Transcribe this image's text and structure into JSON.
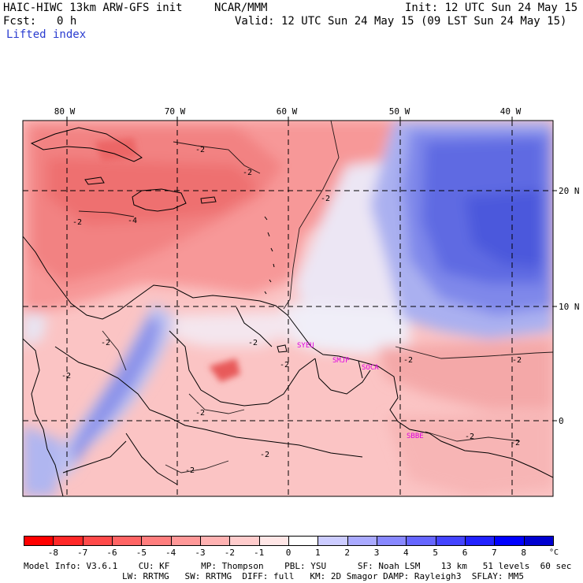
{
  "header": {
    "model_title": "HAIC-HIWC 13km ARW-GFS init",
    "org": "NCAR/MMM",
    "init": "Init: 12 UTC Sun 24 May 15",
    "fcst_label": "Fcst:",
    "fcst_value": "0 h",
    "valid": "Valid: 12 UTC Sun 24 May 15 (09 LST Sun 24 May 15)",
    "field_name": "Lifted index"
  },
  "map": {
    "lon_labels": [
      "80 W",
      "70 W",
      "60 W",
      "50 W",
      "40 W"
    ],
    "lat_labels": [
      "20 N",
      "10 N",
      "0"
    ],
    "contour_labels": [
      "-2",
      "-2",
      "-2",
      "-2",
      "-2",
      "-2",
      "-2",
      "-2",
      "-2",
      "-2",
      "-2",
      "-2",
      "-2",
      "-2",
      "-2",
      "-4"
    ],
    "stations": [
      "SYEU",
      "SMJP",
      "SOCA",
      "SBBE"
    ],
    "colors": {
      "marker": "#e000e0",
      "warm": "#f08080",
      "cool": "#4050e0"
    }
  },
  "colorbar": {
    "ticks": [
      "-8",
      "-7",
      "-6",
      "-5",
      "-4",
      "-3",
      "-2",
      "-1",
      "0",
      "1",
      "2",
      "3",
      "4",
      "5",
      "6",
      "7",
      "8"
    ],
    "unit": "°C",
    "colors": [
      "#ff0000",
      "#ff2828",
      "#ff4a4a",
      "#ff6464",
      "#ff7e7e",
      "#ff9898",
      "#ffb2b2",
      "#ffcccc",
      "#ffe6e6",
      "#ffffff",
      "#ccccff",
      "#aaaaff",
      "#8888ff",
      "#6666ff",
      "#4444ff",
      "#2222ff",
      "#0000ff",
      "#0000d0"
    ]
  },
  "footer": {
    "line1": "Model Info: V3.6.1    CU: KF      MP: Thompson    PBL: YSU      SF: Noah LSM    13 km   51 levels  60 sec",
    "line2": "LW: RRTMG   SW: RRTMG  DIFF: full   KM: 2D Smagor DAMP: Rayleigh3  SFLAY: MM5"
  }
}
